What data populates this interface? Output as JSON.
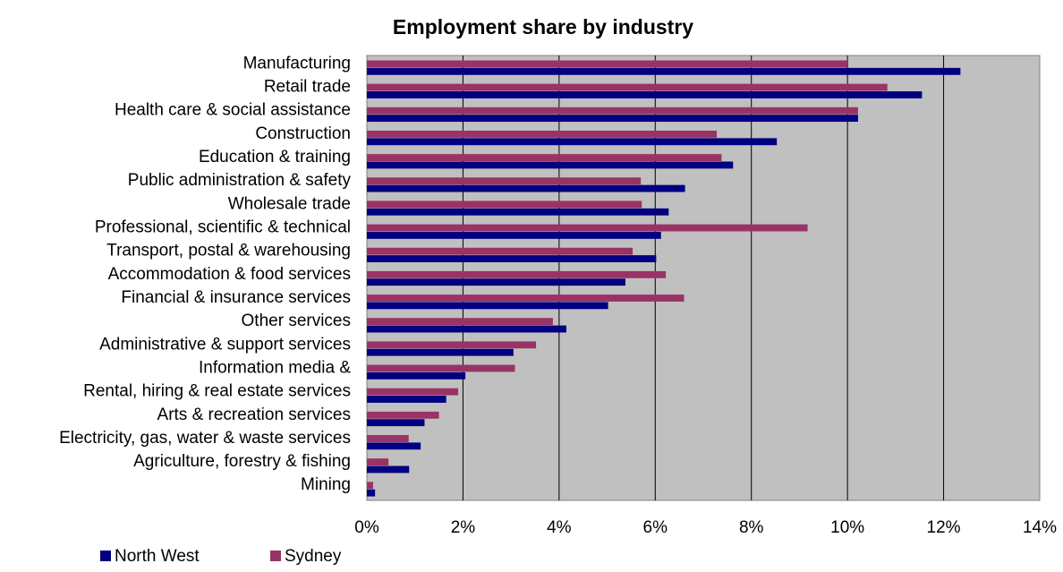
{
  "chart_data": {
    "type": "bar",
    "orientation": "horizontal",
    "title": "Employment share by industry",
    "xlabel": "",
    "ylabel": "",
    "xlim": [
      0,
      14
    ],
    "x_tick_step": 2,
    "x_tick_format": "percent",
    "grid": "vertical",
    "plot_background": "#C0C0C0",
    "legend_position": "bottom-left",
    "categories": [
      "Manufacturing",
      "Retail trade",
      "Health care & social assistance",
      "Construction",
      "Education & training",
      "Public administration & safety",
      "Wholesale trade",
      "Professional, scientific & technical",
      "Transport, postal & warehousing",
      "Accommodation & food services",
      "Financial & insurance services",
      "Other services",
      "Administrative & support services",
      "Information media &",
      "Rental, hiring & real estate services",
      "Arts & recreation services",
      "Electricity, gas, water & waste services",
      "Agriculture, forestry & fishing",
      "Mining"
    ],
    "series": [
      {
        "name": "North West",
        "color": "#000080",
        "values": [
          12.35,
          11.55,
          10.22,
          8.53,
          7.62,
          6.62,
          6.28,
          6.12,
          6.02,
          5.38,
          5.02,
          4.15,
          3.05,
          2.05,
          1.65,
          1.2,
          1.12,
          0.88,
          0.17
        ]
      },
      {
        "name": "Sydney",
        "color": "#993366",
        "values": [
          10.0,
          10.83,
          10.22,
          7.28,
          7.38,
          5.7,
          5.72,
          9.17,
          5.53,
          6.22,
          6.6,
          3.87,
          3.52,
          3.08,
          1.9,
          1.5,
          0.87,
          0.45,
          0.13
        ]
      }
    ]
  }
}
